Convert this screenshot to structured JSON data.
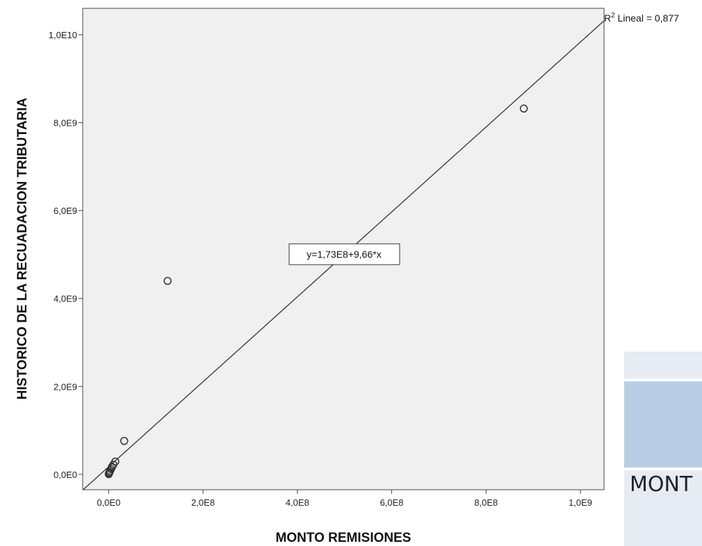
{
  "chart_data": {
    "type": "scatter",
    "xlabel": "MONTO REMISIONES",
    "ylabel": "HISTORICO DE LA RECUADACION TRIBUTARIA",
    "xlim": [
      -55000000,
      1050000000
    ],
    "ylim": [
      -350000000,
      10600000000
    ],
    "x_ticks": [
      0,
      200000000,
      400000000,
      600000000,
      800000000,
      1000000000
    ],
    "x_tick_labels": [
      "0,0E0",
      "2,0E8",
      "4,0E8",
      "6,0E8",
      "8,0E8",
      "1,0E9"
    ],
    "y_ticks": [
      0,
      2000000000,
      4000000000,
      6000000000,
      8000000000,
      10000000000
    ],
    "y_tick_labels": [
      "0,0E0",
      "2,0E9",
      "4,0E9",
      "6,0E9",
      "8,0E9",
      "1,0E10"
    ],
    "points": [
      {
        "x": 880000000,
        "y": 8320000000
      },
      {
        "x": 125000000,
        "y": 4400000000
      },
      {
        "x": 33000000,
        "y": 760000000
      },
      {
        "x": 14000000,
        "y": 290000000
      },
      {
        "x": 10000000,
        "y": 220000000
      },
      {
        "x": 7000000,
        "y": 170000000
      },
      {
        "x": 5000000,
        "y": 120000000
      },
      {
        "x": 3000000,
        "y": 80000000
      },
      {
        "x": 2000000,
        "y": 50000000
      },
      {
        "x": 1000000,
        "y": 30000000
      },
      {
        "x": 500000,
        "y": 15000000
      },
      {
        "x": 200000,
        "y": 5000000
      }
    ],
    "fit_line": {
      "intercept": 173000000,
      "slope": 9.66
    },
    "fit_equation_label": "y=1,73E8+9,66*x",
    "r2_label_prefix": "R",
    "r2_label_superscript": "2",
    "r2_label_rest": " Lineal = 0,877",
    "background_color": "#f0f0f0",
    "line_color": "#333333",
    "marker_color": "#333333",
    "grid": false
  },
  "side_panel": {
    "header_text": "MONT",
    "colors": {
      "light": "#e6ebf4",
      "header": "#b9cde4"
    }
  }
}
